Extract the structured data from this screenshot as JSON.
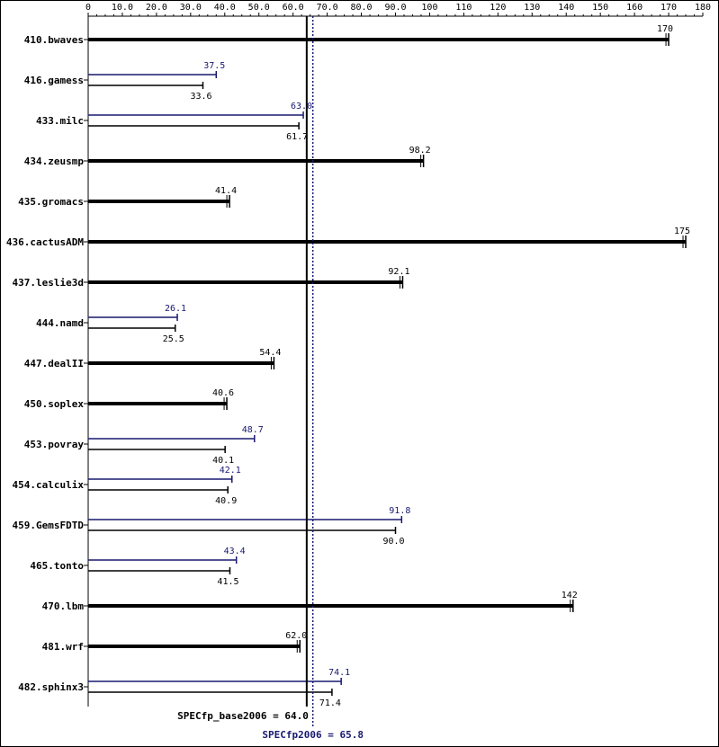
{
  "chart_data": {
    "type": "bar",
    "orientation": "horizontal",
    "xlim": [
      0,
      180
    ],
    "x_ticks": [
      "0",
      "10.0",
      "20.0",
      "30.0",
      "40.0",
      "50.0",
      "60.0",
      "70.0",
      "80.0",
      "90.0",
      "100",
      "110",
      "120",
      "130",
      "140",
      "150",
      "160",
      "170",
      "180"
    ],
    "colors": {
      "peak": "#191970",
      "base": "#000000"
    },
    "categories": [
      "410.bwaves",
      "416.gamess",
      "433.milc",
      "434.zeusmp",
      "435.gromacs",
      "436.cactusADM",
      "437.leslie3d",
      "444.namd",
      "447.dealII",
      "450.soplex",
      "453.povray",
      "454.calculix",
      "459.GemsFDTD",
      "465.tonto",
      "470.lbm",
      "481.wrf",
      "482.sphinx3"
    ],
    "series": [
      {
        "key": "peak",
        "values": [
          null,
          37.5,
          63.0,
          null,
          null,
          null,
          null,
          26.1,
          null,
          null,
          48.7,
          42.1,
          91.8,
          43.4,
          null,
          null,
          74.1
        ]
      },
      {
        "key": "base",
        "values": [
          170,
          33.6,
          61.7,
          98.2,
          41.4,
          175,
          92.1,
          25.5,
          54.4,
          40.6,
          40.1,
          40.9,
          90.0,
          41.5,
          142,
          62.0,
          71.4
        ]
      }
    ],
    "value_labels": {
      "peak": [
        "",
        "37.5",
        "63.0",
        "",
        "",
        "",
        "",
        "26.1",
        "",
        "",
        "48.7",
        "42.1",
        "91.8",
        "43.4",
        "",
        "",
        "74.1"
      ],
      "base": [
        "170",
        "33.6",
        "61.7",
        "98.2",
        "41.4",
        "175",
        "92.1",
        "25.5",
        "54.4",
        "40.6",
        "40.1",
        "40.9",
        "90.0",
        "41.5",
        "142",
        "62.0",
        "71.4"
      ]
    },
    "reference_lines": [
      {
        "key": "base",
        "value": 64.0,
        "label": "SPECfp_base2006 = 64.0"
      },
      {
        "key": "peak",
        "value": 65.8,
        "label": "SPECfp2006 = 65.8"
      }
    ]
  }
}
